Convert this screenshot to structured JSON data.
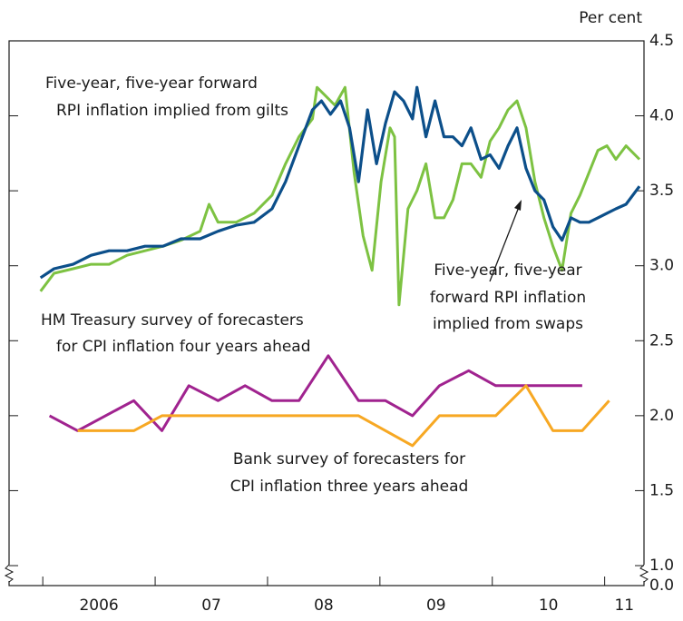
{
  "chart_data": {
    "type": "line",
    "unit_label": "Per cent",
    "xlim": [
      2005.7,
      2011.35
    ],
    "xticks": [
      {
        "value": 2006,
        "label": "2006"
      },
      {
        "value": 2007,
        "label": "07"
      },
      {
        "value": 2008,
        "label": "08"
      },
      {
        "value": 2009,
        "label": "09"
      },
      {
        "value": 2010,
        "label": "10"
      },
      {
        "value": 2011,
        "label": "11"
      }
    ],
    "ylim": [
      0,
      4.5
    ],
    "axis_break": [
      0,
      1
    ],
    "yticks": [
      4.5,
      {
        "value": 4,
        "label": "4.0"
      },
      3.5,
      {
        "value": 3,
        "label": "3.0"
      },
      2.5,
      {
        "value": 2,
        "label": "2.0"
      },
      1.5,
      {
        "value": 1,
        "label": "1.0"
      },
      {
        "value": 0,
        "label": "0.0"
      }
    ],
    "series": [
      {
        "name": [
          "Five-year, five-year forward",
          "RPI inflation implied from gilts"
        ],
        "color": "#7dc242",
        "x": [
          2005.98,
          2006.1,
          2006.27,
          2006.43,
          2006.59,
          2006.75,
          2006.91,
          2007.07,
          2007.23,
          2007.4,
          2007.48,
          2007.56,
          2007.72,
          2007.88,
          2008.04,
          2008.16,
          2008.28,
          2008.4,
          2008.44,
          2008.52,
          2008.6,
          2008.69,
          2008.77,
          2008.85,
          2008.93,
          2009.01,
          2009.09,
          2009.13,
          2009.17,
          2009.25,
          2009.33,
          2009.41,
          2009.49,
          2009.57,
          2009.65,
          2009.73,
          2009.81,
          2009.9,
          2009.98,
          2010.06,
          2010.14,
          2010.22,
          2010.3,
          2010.38,
          2010.46,
          2010.54,
          2010.62,
          2010.7,
          2010.78,
          2010.86,
          2010.94,
          2011.02,
          2011.1,
          2011.19,
          2011.31
        ],
        "values": [
          2.83,
          2.95,
          2.98,
          3.01,
          3.01,
          3.07,
          3.1,
          3.13,
          3.17,
          3.23,
          3.41,
          3.29,
          3.29,
          3.35,
          3.47,
          3.68,
          3.86,
          3.98,
          4.19,
          4.13,
          4.07,
          4.19,
          3.62,
          3.2,
          2.97,
          3.56,
          3.92,
          3.86,
          2.74,
          3.38,
          3.5,
          3.68,
          3.32,
          3.32,
          3.44,
          3.68,
          3.68,
          3.59,
          3.83,
          3.92,
          4.04,
          4.1,
          3.92,
          3.56,
          3.32,
          3.13,
          2.97,
          3.35,
          3.47,
          3.62,
          3.77,
          3.8,
          3.71,
          3.8,
          3.71
        ]
      },
      {
        "name": [
          "Five-year, five-year",
          "forward RPI inflation",
          "implied from swaps"
        ],
        "color": "#0c4f8a",
        "x": [
          2005.98,
          2006.1,
          2006.27,
          2006.43,
          2006.59,
          2006.75,
          2006.91,
          2007.07,
          2007.23,
          2007.4,
          2007.56,
          2007.72,
          2007.88,
          2008.04,
          2008.16,
          2008.28,
          2008.4,
          2008.48,
          2008.56,
          2008.65,
          2008.73,
          2008.81,
          2008.89,
          2008.97,
          2009.05,
          2009.13,
          2009.21,
          2009.29,
          2009.33,
          2009.41,
          2009.49,
          2009.57,
          2009.65,
          2009.73,
          2009.81,
          2009.9,
          2009.98,
          2010.06,
          2010.14,
          2010.22,
          2010.3,
          2010.38,
          2010.46,
          2010.54,
          2010.62,
          2010.7,
          2010.78,
          2010.86,
          2010.94,
          2011.02,
          2011.1,
          2011.19,
          2011.31
        ],
        "values": [
          2.92,
          2.98,
          3.01,
          3.07,
          3.1,
          3.1,
          3.13,
          3.13,
          3.18,
          3.18,
          3.23,
          3.27,
          3.29,
          3.38,
          3.56,
          3.8,
          4.04,
          4.1,
          4.01,
          4.1,
          3.92,
          3.56,
          4.04,
          3.68,
          3.95,
          4.16,
          4.1,
          3.98,
          4.19,
          3.86,
          4.1,
          3.86,
          3.86,
          3.8,
          3.92,
          3.71,
          3.74,
          3.65,
          3.8,
          3.92,
          3.65,
          3.5,
          3.44,
          3.26,
          3.17,
          3.32,
          3.29,
          3.29,
          3.32,
          3.35,
          3.38,
          3.41,
          3.53
        ]
      },
      {
        "name": [
          "HM Treasury survey of forecasters",
          "for CPI inflation four years ahead"
        ],
        "color": "#a0238f",
        "x": [
          2006.06,
          2006.31,
          2006.81,
          2007.06,
          2007.3,
          2007.56,
          2007.8,
          2008.04,
          2008.28,
          2008.54,
          2008.81,
          2009.05,
          2009.29,
          2009.53,
          2009.79,
          2010.03,
          2010.3,
          2010.54,
          2010.8
        ],
        "values": [
          2.0,
          1.9,
          2.1,
          1.9,
          2.2,
          2.1,
          2.2,
          2.1,
          2.1,
          2.4,
          2.1,
          2.1,
          2.0,
          2.2,
          2.3,
          2.2,
          2.2,
          2.2,
          2.2
        ]
      },
      {
        "name": [
          "Bank survey of forecasters for",
          "CPI inflation three years ahead"
        ],
        "color": "#f7a823",
        "x": [
          2006.31,
          2006.81,
          2007.06,
          2007.3,
          2007.56,
          2007.8,
          2008.04,
          2008.28,
          2008.54,
          2008.81,
          2009.29,
          2009.53,
          2009.79,
          2010.03,
          2010.3,
          2010.54,
          2010.8,
          2011.04
        ],
        "values": [
          1.9,
          1.9,
          2.0,
          2.0,
          2.0,
          2.0,
          2.0,
          2.0,
          2.0,
          2.0,
          1.8,
          2.0,
          2.0,
          2.0,
          2.2,
          1.9,
          1.9,
          2.1
        ]
      }
    ]
  }
}
